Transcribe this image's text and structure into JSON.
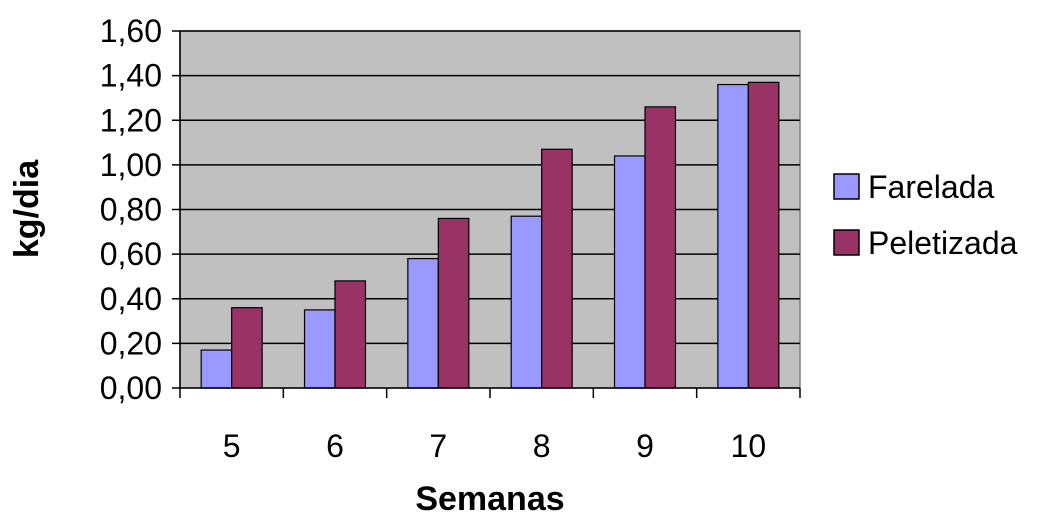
{
  "chart_data": {
    "type": "bar",
    "categories": [
      "5",
      "6",
      "7",
      "8",
      "9",
      "10"
    ],
    "series": [
      {
        "name": "Farelada",
        "color": "#9999ff",
        "values": [
          0.17,
          0.35,
          0.58,
          0.77,
          1.04,
          1.36
        ]
      },
      {
        "name": "Peletizada",
        "color": "#993366",
        "values": [
          0.36,
          0.48,
          0.76,
          1.07,
          1.26,
          1.37
        ]
      }
    ],
    "ylim": [
      0,
      1.6
    ],
    "yticks": [
      "0,00",
      "0,20",
      "0,40",
      "0,60",
      "0,80",
      "1,00",
      "1,20",
      "1,40",
      "1,60"
    ],
    "xlabel": "Semanas",
    "ylabel": "kg/dia",
    "title": "",
    "grid": true,
    "plot_background": "#c0c0c0",
    "legend_position": "right"
  }
}
